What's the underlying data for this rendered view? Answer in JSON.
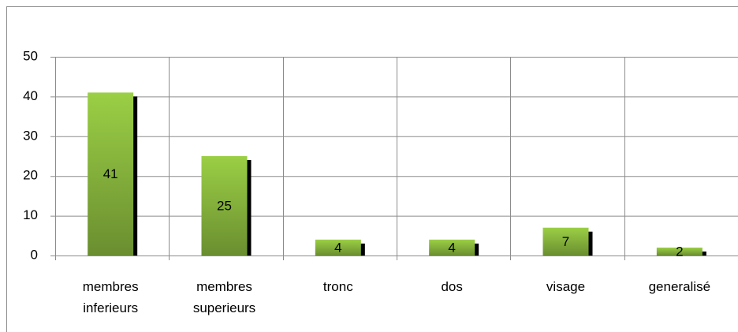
{
  "chart_data": {
    "type": "bar",
    "categories": [
      "membres inferieurs",
      "membres superieurs",
      "tronc",
      "dos",
      "visage",
      "generalisé"
    ],
    "values": [
      41,
      25,
      4,
      4,
      7,
      2
    ],
    "color": "#8db83e",
    "ylim": [
      0,
      50
    ],
    "yticks": [
      0,
      10,
      20,
      30,
      40,
      50
    ],
    "grid": true
  }
}
